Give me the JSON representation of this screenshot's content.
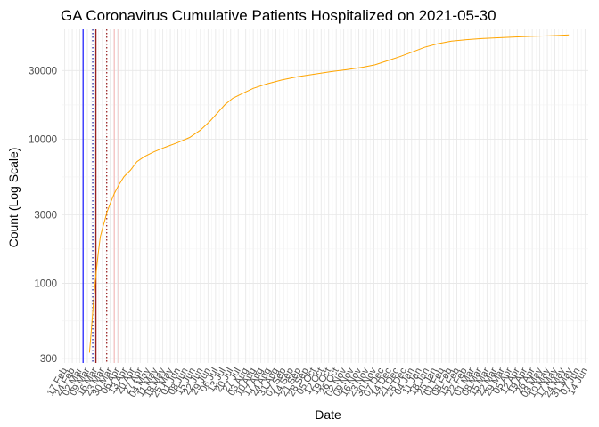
{
  "chart_data": {
    "type": "line",
    "title": "GA Coronavirus Cumulative Patients Hospitalized on 2021-05-30",
    "xlabel": "Date",
    "ylabel": "Count (Log Scale)",
    "y_scale": "log",
    "ylim": [
      280,
      58000
    ],
    "xlim": [
      "2020-02-14",
      "2021-06-17"
    ],
    "grid": true,
    "y_ticks": [
      300,
      1000,
      3000,
      10000,
      30000
    ],
    "y_tick_labels": [
      "300",
      "1000",
      "3000",
      "10000",
      "30000"
    ],
    "x_tick_labels": [
      "17 Feb",
      "24 Feb",
      "02 Mar",
      "09 Mar",
      "16 Mar",
      "23 Mar",
      "30 Mar",
      "06 Apr",
      "13 Apr",
      "20 Apr",
      "27 Apr",
      "04 May",
      "11 May",
      "18 May",
      "25 May",
      "01 Jun",
      "08 Jun",
      "15 Jun",
      "22 Jun",
      "29 Jun",
      "06 Jul",
      "13 Jul",
      "20 Jul",
      "27 Jul",
      "03 Aug",
      "10 Aug",
      "17 Aug",
      "24 Aug",
      "31 Aug",
      "07 Sep",
      "14 Sep",
      "21 Sep",
      "28 Sep",
      "05 Oct",
      "12 Oct",
      "19 Oct",
      "26 Oct",
      "02 Nov",
      "09 Nov",
      "16 Nov",
      "23 Nov",
      "30 Nov",
      "07 Dec",
      "14 Dec",
      "21 Dec",
      "28 Dec",
      "04 Jan",
      "11 Jan",
      "18 Jan",
      "25 Jan",
      "01 Feb",
      "08 Feb",
      "15 Feb",
      "22 Feb",
      "01 Mar",
      "08 Mar",
      "15 Mar",
      "22 Mar",
      "29 Mar",
      "05 Apr",
      "12 Apr",
      "19 Apr",
      "26 Apr",
      "03 May",
      "10 May",
      "17 May",
      "24 May",
      "31 May",
      "07 Jun",
      "14 Jun"
    ],
    "x_tick_start": "2020-02-17",
    "x_tick_step_days": 7,
    "vertical_lines": [
      {
        "date": "2020-03-05",
        "color": "#0000ff",
        "style": "solid"
      },
      {
        "date": "2020-03-14",
        "color": "#00008b",
        "style": "dotted"
      },
      {
        "date": "2020-03-17",
        "color": "#8b0000",
        "style": "solid"
      },
      {
        "date": "2020-03-27",
        "color": "#8b0000",
        "style": "dotted"
      },
      {
        "date": "2020-04-03",
        "color": "#f4b8b8",
        "style": "solid"
      },
      {
        "date": "2020-04-07",
        "color": "#f4b8b8",
        "style": "solid"
      }
    ],
    "series": [
      {
        "color": "#ffa500",
        "points": [
          [
            "2020-03-11",
            330
          ],
          [
            "2020-03-13",
            500
          ],
          [
            "2020-03-15",
            800
          ],
          [
            "2020-03-17",
            1150
          ],
          [
            "2020-03-19",
            1600
          ],
          [
            "2020-03-21",
            2100
          ],
          [
            "2020-03-23",
            2400
          ],
          [
            "2020-03-25",
            2700
          ],
          [
            "2020-03-27",
            3100
          ],
          [
            "2020-03-30",
            3550
          ],
          [
            "2020-04-03",
            4200
          ],
          [
            "2020-04-07",
            4800
          ],
          [
            "2020-04-12",
            5500
          ],
          [
            "2020-04-18",
            6100
          ],
          [
            "2020-04-24",
            7000
          ],
          [
            "2020-05-01",
            7600
          ],
          [
            "2020-05-10",
            8200
          ],
          [
            "2020-05-20",
            8800
          ],
          [
            "2020-06-01",
            9500
          ],
          [
            "2020-06-12",
            10300
          ],
          [
            "2020-06-22",
            11600
          ],
          [
            "2020-07-01",
            13400
          ],
          [
            "2020-07-08",
            15300
          ],
          [
            "2020-07-15",
            17500
          ],
          [
            "2020-07-22",
            19300
          ],
          [
            "2020-08-01",
            21000
          ],
          [
            "2020-08-10",
            22600
          ],
          [
            "2020-08-22",
            24200
          ],
          [
            "2020-09-05",
            25800
          ],
          [
            "2020-09-20",
            27200
          ],
          [
            "2020-10-05",
            28300
          ],
          [
            "2020-10-20",
            29400
          ],
          [
            "2020-11-05",
            30500
          ],
          [
            "2020-11-20",
            31700
          ],
          [
            "2020-12-01",
            32900
          ],
          [
            "2020-12-12",
            35000
          ],
          [
            "2020-12-24",
            37500
          ],
          [
            "2021-01-05",
            40500
          ],
          [
            "2021-01-16",
            43500
          ],
          [
            "2021-01-28",
            46000
          ],
          [
            "2021-02-10",
            48000
          ],
          [
            "2021-02-24",
            49200
          ],
          [
            "2021-03-10",
            50000
          ],
          [
            "2021-03-25",
            50700
          ],
          [
            "2021-04-10",
            51300
          ],
          [
            "2021-04-25",
            51800
          ],
          [
            "2021-05-10",
            52200
          ],
          [
            "2021-05-20",
            52600
          ],
          [
            "2021-05-30",
            53000
          ]
        ]
      }
    ]
  }
}
